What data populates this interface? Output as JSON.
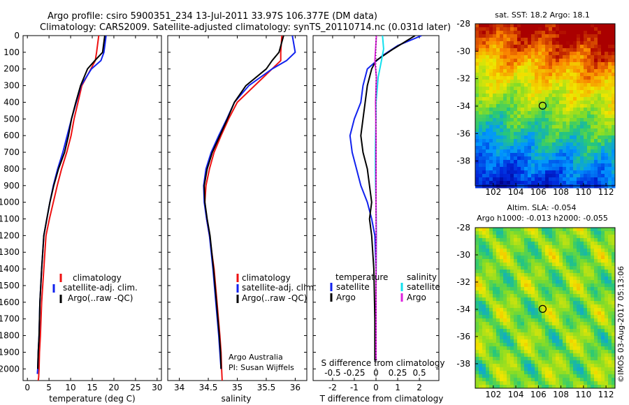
{
  "header": {
    "line1": "Argo profile: csiro 5900351_234 13-Jul-2011 33.97S 106.377E (DM data)",
    "line2": "Climatology: CARS2009. Satellite-adjusted climatology: synTS_20110714.nc (0.031d later)"
  },
  "footer": {
    "credit": "©IMOS 03-Aug-2017 05:13:06"
  },
  "colors": {
    "climatology": "#ee1111",
    "satellite": "#1122ee",
    "argo": "#000000",
    "satellite_s": "#11e0ee",
    "argo_s": "#dd22dd"
  },
  "chart_data": [
    {
      "type": "line",
      "xlabel": "temperature (deg C)",
      "ylabel": "",
      "xlim": [
        -1,
        31
      ],
      "ylim": [
        2070,
        0
      ],
      "xticks": [
        "0",
        "5",
        "10",
        "15",
        "20",
        "25",
        "30"
      ],
      "xtick_values": [
        0,
        5,
        10,
        15,
        20,
        25,
        30
      ],
      "yticks": [
        "0",
        "100",
        "200",
        "300",
        "400",
        "500",
        "600",
        "700",
        "800",
        "900",
        "1000",
        "1100",
        "1200",
        "1300",
        "1400",
        "1500",
        "1600",
        "1700",
        "1800",
        "1900",
        "2000"
      ],
      "legend": [
        "climatology",
        "satellite-adj. clim.",
        "Argo(..raw -QC)"
      ],
      "series": [
        {
          "name": "climatology",
          "color": "#ee1111",
          "x": [
            16.5,
            16.0,
            15.7,
            14.7,
            12.6,
            11.7,
            10.8,
            10.1,
            9.1,
            7.9,
            6.9,
            6.0,
            5.1,
            4.3,
            3.8,
            3.3,
            3.0,
            2.8,
            2.7,
            2.6,
            2.5
          ],
          "y": [
            0,
            100,
            150,
            200,
            300,
            400,
            500,
            600,
            700,
            800,
            900,
            1000,
            1100,
            1200,
            1400,
            1600,
            1800,
            1900,
            2000,
            2050,
            2070
          ]
        },
        {
          "name": "satellite-adj. clim.",
          "color": "#1122ee",
          "x": [
            18.2,
            17.7,
            17.0,
            14.8,
            12.4,
            11.3,
            10.2,
            9.2,
            8.2,
            7.0,
            6.0,
            5.2,
            4.5,
            3.8,
            3.3,
            2.9,
            2.7,
            2.5,
            2.4,
            2.3
          ],
          "y": [
            0,
            100,
            150,
            200,
            300,
            400,
            500,
            600,
            700,
            800,
            900,
            1000,
            1100,
            1200,
            1400,
            1600,
            1800,
            1900,
            2000,
            2030
          ]
        },
        {
          "name": "Argo(..raw -QC)",
          "color": "#000000",
          "x": [
            17.9,
            17.4,
            15.6,
            13.9,
            12.3,
            11.2,
            10.2,
            9.5,
            8.6,
            7.2,
            6.1,
            5.2,
            4.5,
            3.8,
            3.3,
            2.9,
            2.7,
            2.5,
            2.4
          ],
          "y": [
            0,
            100,
            150,
            200,
            300,
            400,
            500,
            600,
            700,
            800,
            900,
            1000,
            1100,
            1200,
            1400,
            1600,
            1800,
            1900,
            2000
          ]
        }
      ]
    },
    {
      "type": "line",
      "xlabel": "salinity",
      "xlim": [
        33.8,
        36.2
      ],
      "ylim": [
        2070,
        0
      ],
      "xticks": [
        "34",
        "34.5",
        "35",
        "35.5",
        "36"
      ],
      "xtick_values": [
        34,
        34.5,
        35,
        35.5,
        36
      ],
      "legend": [
        "climatology",
        "satellite-adj. clim.",
        "Argo(..raw -QC)"
      ],
      "annotation": [
        "Argo Australia",
        "PI: Susan Wijffels"
      ],
      "series": [
        {
          "name": "climatology",
          "color": "#ee1111",
          "x": [
            35.77,
            35.75,
            35.75,
            35.6,
            35.3,
            35.0,
            34.85,
            34.72,
            34.6,
            34.52,
            34.46,
            34.44,
            34.47,
            34.52,
            34.6,
            34.65,
            34.7,
            34.72,
            34.73,
            34.74
          ],
          "y": [
            0,
            100,
            150,
            200,
            300,
            400,
            500,
            600,
            700,
            800,
            900,
            1000,
            1100,
            1200,
            1400,
            1600,
            1800,
            1900,
            2000,
            2070
          ]
        },
        {
          "name": "satellite-adj. clim.",
          "color": "#1122ee",
          "x": [
            35.95,
            36.0,
            35.85,
            35.6,
            35.2,
            34.95,
            34.82,
            34.68,
            34.55,
            34.46,
            34.42,
            34.43,
            34.47,
            34.52,
            34.58,
            34.63,
            34.68,
            34.7,
            34.72
          ],
          "y": [
            0,
            100,
            150,
            200,
            300,
            400,
            500,
            600,
            700,
            800,
            900,
            1000,
            1100,
            1200,
            1400,
            1600,
            1800,
            1900,
            2000
          ]
        },
        {
          "name": "Argo(..raw -QC)",
          "color": "#000000",
          "x": [
            35.8,
            35.72,
            35.6,
            35.5,
            35.15,
            34.95,
            34.83,
            34.7,
            34.57,
            34.48,
            34.43,
            34.44,
            34.48,
            34.53,
            34.59,
            34.64,
            34.69,
            34.71,
            34.72
          ],
          "y": [
            0,
            100,
            150,
            200,
            300,
            400,
            500,
            600,
            700,
            800,
            900,
            1000,
            1100,
            1200,
            1400,
            1600,
            1800,
            1900,
            2000
          ]
        }
      ]
    },
    {
      "type": "line",
      "xlabel": "T difference from climatology",
      "xlabel_top": "S difference from climatology",
      "xlim": [
        -2.9,
        2.9
      ],
      "ylim": [
        2070,
        0
      ],
      "xticks": [
        "-2",
        "-1",
        "0",
        "1",
        "2"
      ],
      "xtick_values": [
        -2,
        -1,
        0,
        1,
        2
      ],
      "xticks_s": [
        "-0.5",
        "-0.25",
        "0",
        "0.25",
        "0.5"
      ],
      "legend_left": {
        "title": "temperature",
        "items": [
          "satellite",
          "Argo"
        ]
      },
      "legend_right": {
        "title": "salinity",
        "items": [
          "satellite",
          "Argo"
        ]
      },
      "series": [
        {
          "name": "temperature satellite",
          "color": "#1122ee",
          "x": [
            2.1,
            1.0,
            0.3,
            -0.4,
            -0.6,
            -0.7,
            -1.0,
            -1.2,
            -1.1,
            -0.9,
            -0.7,
            -0.4,
            -0.2,
            -0.05,
            0.0,
            0.0,
            -0.05
          ],
          "y": [
            0,
            60,
            120,
            200,
            300,
            400,
            500,
            600,
            700,
            800,
            900,
            1000,
            1100,
            1200,
            1400,
            1700,
            1950
          ]
        },
        {
          "name": "temperature Argo",
          "color": "#000000",
          "x": [
            1.8,
            0.8,
            0.0,
            -0.2,
            -0.4,
            -0.5,
            -0.6,
            -0.7,
            -0.6,
            -0.4,
            -0.3,
            -0.2,
            -0.3,
            -0.2,
            -0.1,
            -0.05,
            -0.05
          ],
          "y": [
            0,
            80,
            150,
            200,
            300,
            400,
            500,
            600,
            700,
            800,
            900,
            1000,
            1100,
            1200,
            1400,
            1700,
            1950
          ]
        },
        {
          "name": "salinity satellite",
          "color": "#11e0ee",
          "x": [
            0.3,
            0.35,
            0.25,
            0.1,
            0.0,
            0.0,
            -0.02,
            -0.03,
            -0.03,
            -0.02,
            0.0,
            0.02,
            0.0,
            0.0
          ],
          "y": [
            0,
            80,
            150,
            250,
            400,
            500,
            600,
            700,
            800,
            900,
            1000,
            1200,
            1500,
            1950
          ]
        },
        {
          "name": "salinity Argo",
          "color": "#dd22dd",
          "x": [
            0.02,
            -0.05,
            0.02,
            -0.02,
            0.0,
            0.0,
            0.0,
            0.01,
            0.0,
            0.0
          ],
          "y": [
            0,
            150,
            250,
            400,
            600,
            800,
            1000,
            1200,
            1500,
            1950
          ]
        }
      ]
    },
    {
      "type": "heatmap",
      "title": "sat. SST: 18.2 Argo: 18.1",
      "xticks": [
        "102",
        "104",
        "106",
        "108",
        "110",
        "112"
      ],
      "yticks": [
        "-28",
        "-30",
        "-32",
        "-34",
        "-36",
        "-38"
      ],
      "marker": {
        "lon": 106.377,
        "lat": -33.97
      }
    },
    {
      "type": "heatmap",
      "title": "Altim. SLA: -0.054",
      "subtitle": "Argo h1000: -0.013 h2000: -0.055",
      "xticks": [
        "102",
        "104",
        "106",
        "108",
        "110",
        "112"
      ],
      "yticks": [
        "-28",
        "-30",
        "-32",
        "-34",
        "-36",
        "-38"
      ],
      "marker": {
        "lon": 106.377,
        "lat": -33.97
      }
    }
  ]
}
